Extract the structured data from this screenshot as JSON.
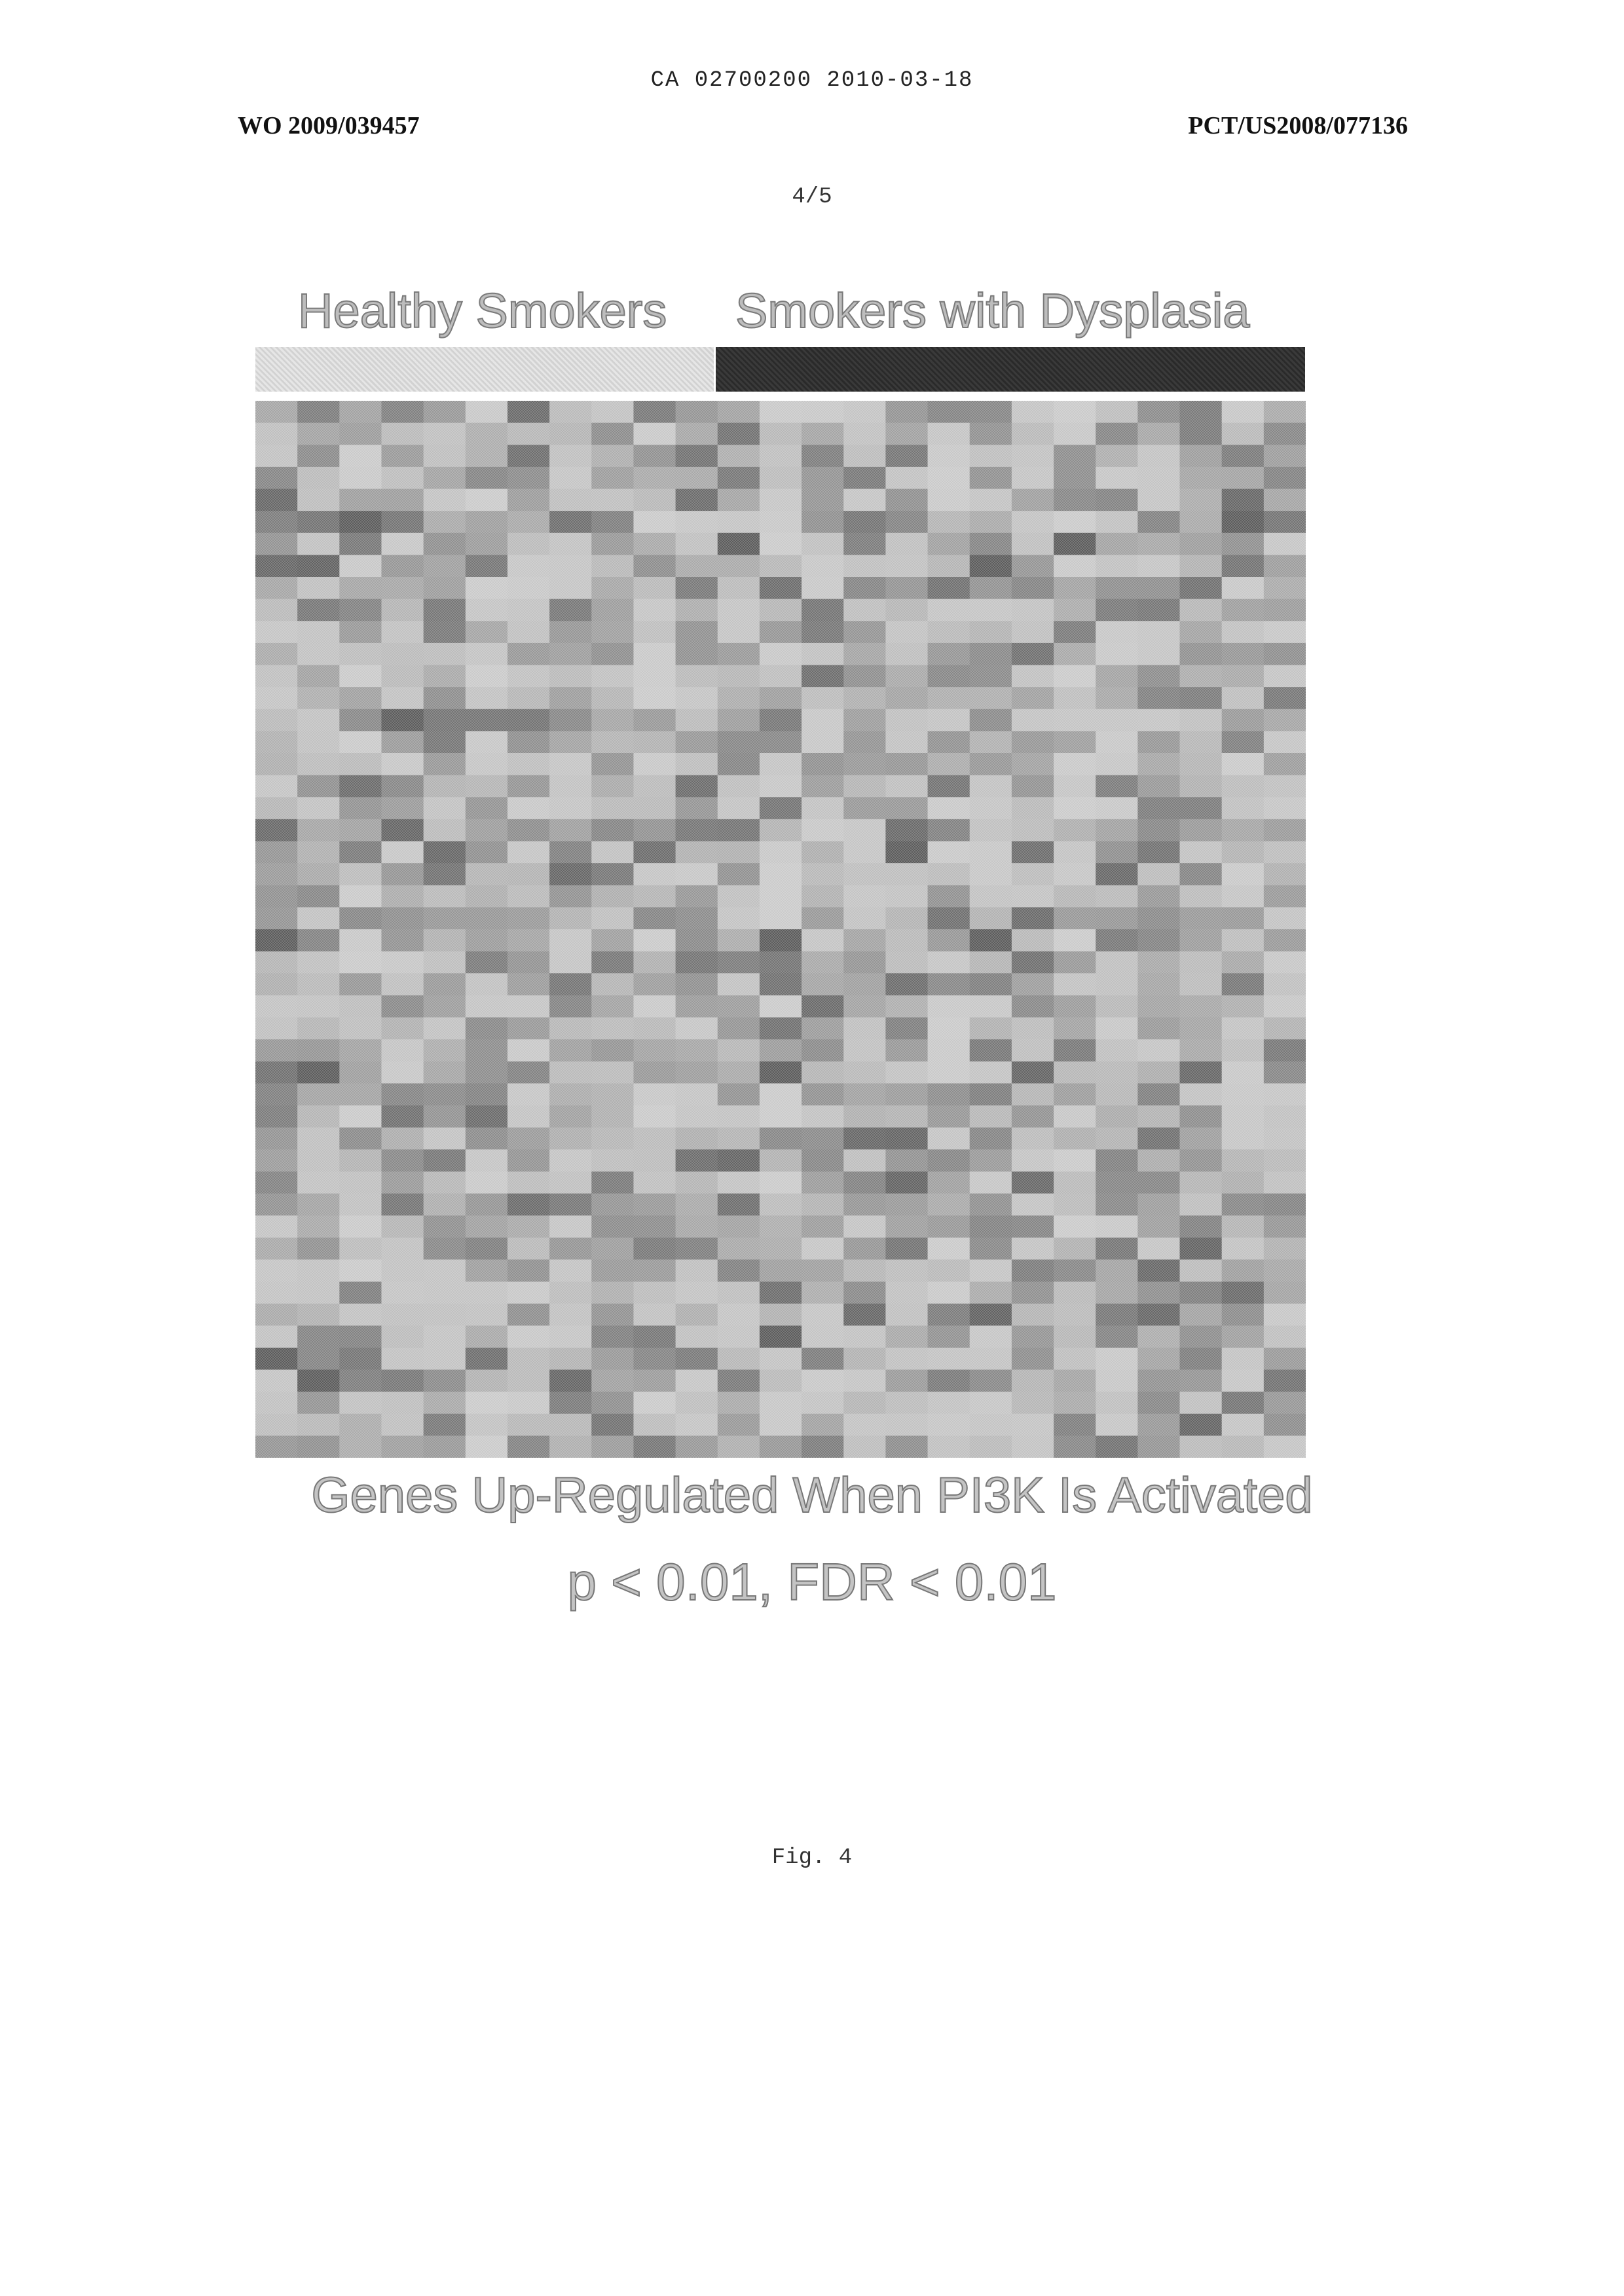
{
  "header": {
    "doc_number": "CA 02700200 2010-03-18",
    "pub_left": "WO 2009/039457",
    "pub_right": "PCT/US2008/077136",
    "page": "4/5"
  },
  "figure": {
    "groups": [
      {
        "label": "Healthy Smokers",
        "bar_shade": "#dcdcdc"
      },
      {
        "label": "Smokers with Dysplasia",
        "bar_shade": "#333333"
      }
    ],
    "caption": "Genes Up-Regulated When PI3K Is Activated",
    "stats": "p < 0.01, FDR < 0.01",
    "label": "Fig. 4"
  },
  "chart_data": {
    "type": "heatmap",
    "columns": 25,
    "rows": 48,
    "group_sizes": [
      11,
      14
    ],
    "value_encoding": "grayscale, darker = higher expression",
    "seed": 7
  }
}
